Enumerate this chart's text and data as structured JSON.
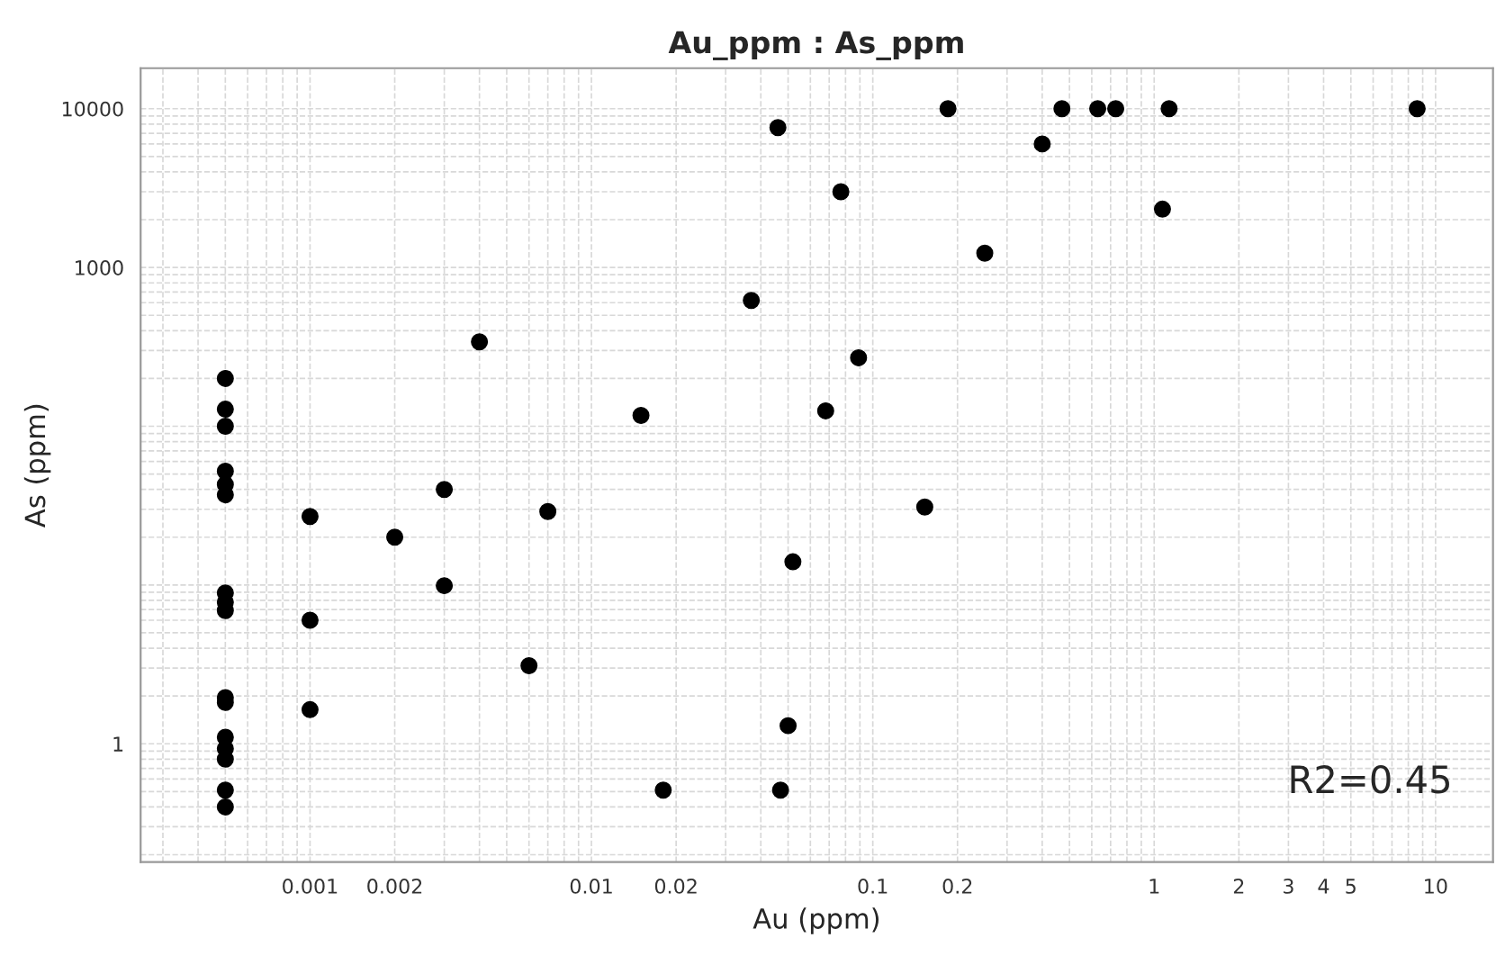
{
  "chart_data": {
    "type": "scatter",
    "title": "Au_ppm : As_ppm",
    "xlabel": "Au (ppm)",
    "ylabel": "As (ppm)",
    "annotations": [
      "R2=0.45"
    ],
    "log": "xy",
    "grid": true,
    "marker": "circle",
    "xlim": [
      0.00025,
      16
    ],
    "ylim": [
      0.18,
      18000
    ],
    "xticks": [
      0.001,
      0.002,
      0.01,
      0.02,
      0.1,
      0.2,
      1,
      2,
      3,
      4,
      5,
      10
    ],
    "yticks": [
      1,
      1000,
      10000
    ],
    "series": [
      {
        "color": "#000000",
        "x": [
          0.0005,
          0.0005,
          0.0005,
          0.0005,
          0.0005,
          0.0005,
          0.0005,
          0.0005,
          0.0005,
          0.0005,
          0.0005,
          0.0005,
          0.0005,
          0.0005,
          0.0005,
          0.0005,
          0.001,
          0.001,
          0.001,
          0.002,
          0.003,
          0.003,
          0.004,
          0.006,
          0.007,
          0.015,
          0.018,
          0.037,
          0.046,
          0.077,
          0.089,
          0.068,
          0.153,
          0.185,
          0.25,
          0.4,
          0.47,
          0.63,
          0.73,
          1.13,
          1.07,
          8.6,
          0.052,
          0.05,
          0.047
        ],
        "values": [
          200,
          128,
          100,
          52,
          43,
          37,
          8.9,
          7.8,
          6.9,
          1.95,
          1.82,
          1.1,
          0.93,
          0.8,
          0.51,
          0.4,
          27,
          6,
          1.64,
          20,
          40,
          9.9,
          340,
          3.1,
          29,
          117,
          0.51,
          620,
          7600,
          3000,
          270,
          125,
          31,
          10000,
          1230,
          6000,
          10000,
          10000,
          10000,
          10000,
          2330,
          10000,
          14,
          1.3,
          0.51
        ]
      }
    ]
  }
}
